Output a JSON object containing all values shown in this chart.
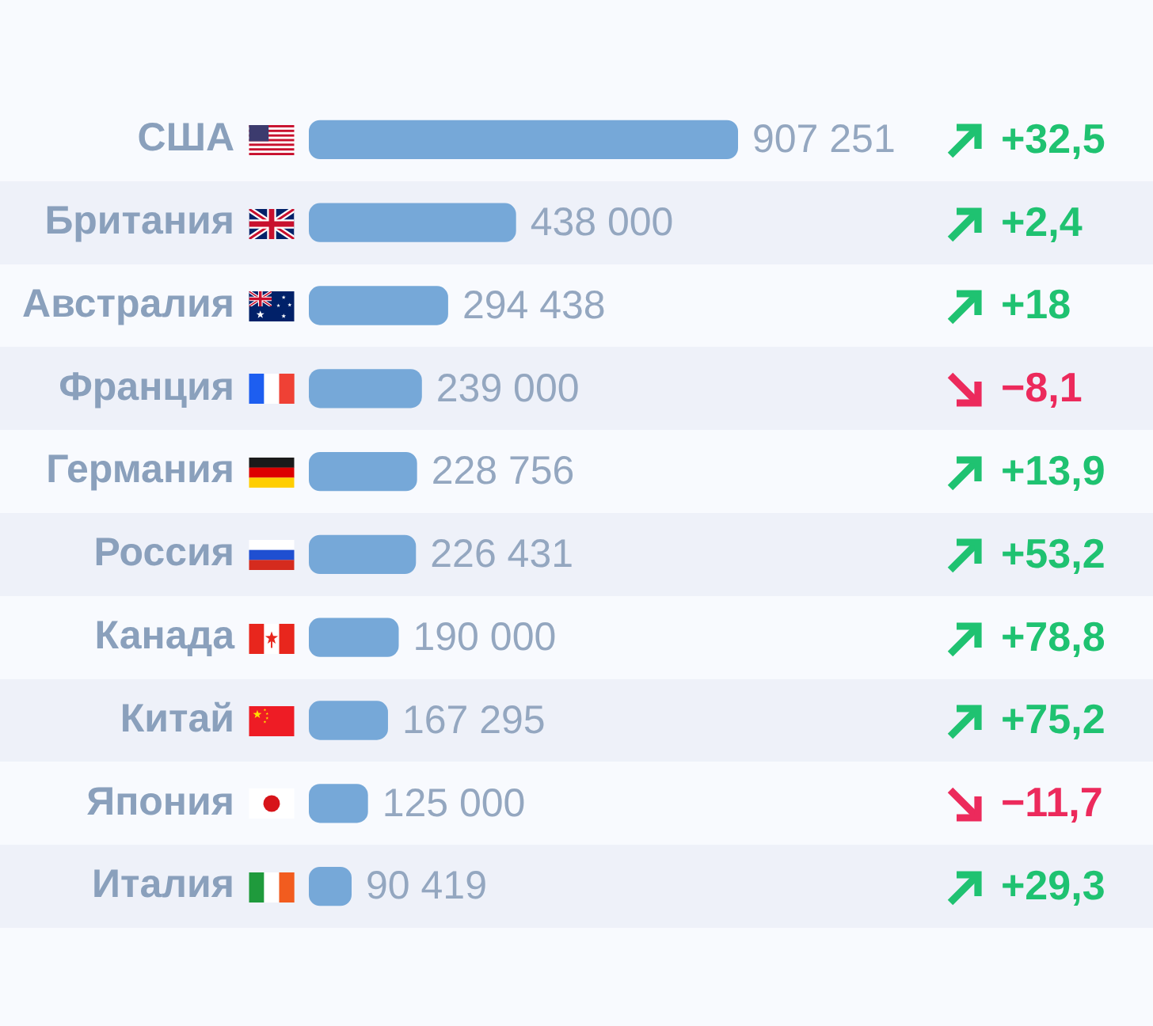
{
  "chart_data": {
    "type": "bar",
    "orientation": "horizontal",
    "categories": [
      "США",
      "Британия",
      "Австралия",
      "Франция",
      "Германия",
      "Россия",
      "Канада",
      "Китай",
      "Япония",
      "Италия"
    ],
    "values": [
      907251,
      438000,
      294438,
      239000,
      228756,
      226431,
      190000,
      167295,
      125000,
      90419
    ],
    "value_labels": [
      "907 251",
      "438 000",
      "294 438",
      "239 000",
      "228 756",
      "226 431",
      "190 000",
      "167 295",
      "125 000",
      "90 419"
    ],
    "color": "#76a8d8",
    "annotations": [
      "+32,5",
      "+2,4",
      "+18",
      "−8,1",
      "+13,9",
      "+53,2",
      "+78,8",
      "+75,2",
      "−11,7",
      "+29,3"
    ],
    "tick_labels": "y",
    "legend": false,
    "grid": false
  }
}
